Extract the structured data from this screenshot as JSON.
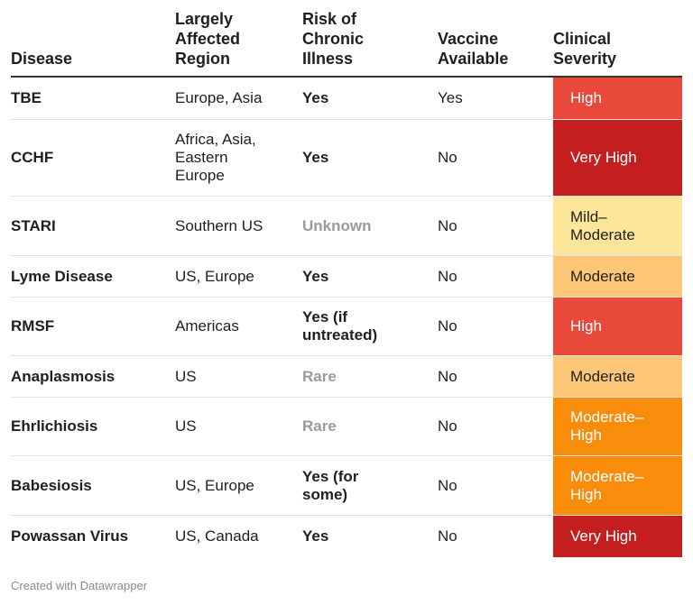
{
  "headers": {
    "disease": "Disease",
    "region": "Largely\nAffected\nRegion",
    "risk": "Risk of\nChronic\nIllness",
    "vaccine": "Vaccine\nAvailable",
    "severity": "Clinical\nSeverity"
  },
  "rows": [
    {
      "disease": "TBE",
      "region": "Europe, Asia",
      "risk": "Yes",
      "vaccine": "Yes",
      "severity": "High"
    },
    {
      "disease": "CCHF",
      "region": "Africa, Asia,\nEastern\nEurope",
      "risk": "Yes",
      "vaccine": "No",
      "severity": "Very High"
    },
    {
      "disease": "STARI",
      "region": "Southern US",
      "risk": "Unknown",
      "vaccine": "No",
      "severity": "Mild–\nModerate"
    },
    {
      "disease": "Lyme Disease",
      "region": "US, Europe",
      "risk": "Yes",
      "vaccine": "No",
      "severity": "Moderate"
    },
    {
      "disease": "RMSF",
      "region": "Americas",
      "risk": "Yes (if\nuntreated)",
      "vaccine": "No",
      "severity": "High"
    },
    {
      "disease": "Anaplasmosis",
      "region": "US",
      "risk": "Rare",
      "vaccine": "No",
      "severity": "Moderate"
    },
    {
      "disease": "Ehrlichiosis",
      "region": "US",
      "risk": "Rare",
      "vaccine": "No",
      "severity": "Moderate–\nHigh"
    },
    {
      "disease": "Babesiosis",
      "region": "US, Europe",
      "risk": "Yes (for\nsome)",
      "vaccine": "No",
      "severity": "Moderate–\nHigh"
    },
    {
      "disease": "Powassan Virus",
      "region": "US, Canada",
      "risk": "Yes",
      "vaccine": "No",
      "severity": "Very High"
    }
  ],
  "colors": {
    "high": "#e8493a",
    "very_high": "#c41e1e",
    "mild_moderate": "#fde69a",
    "moderate": "#fdc777",
    "moderate_high": "#f98c0a",
    "muted_text": "#9a9a9a"
  },
  "footer": "Created with Datawrapper"
}
